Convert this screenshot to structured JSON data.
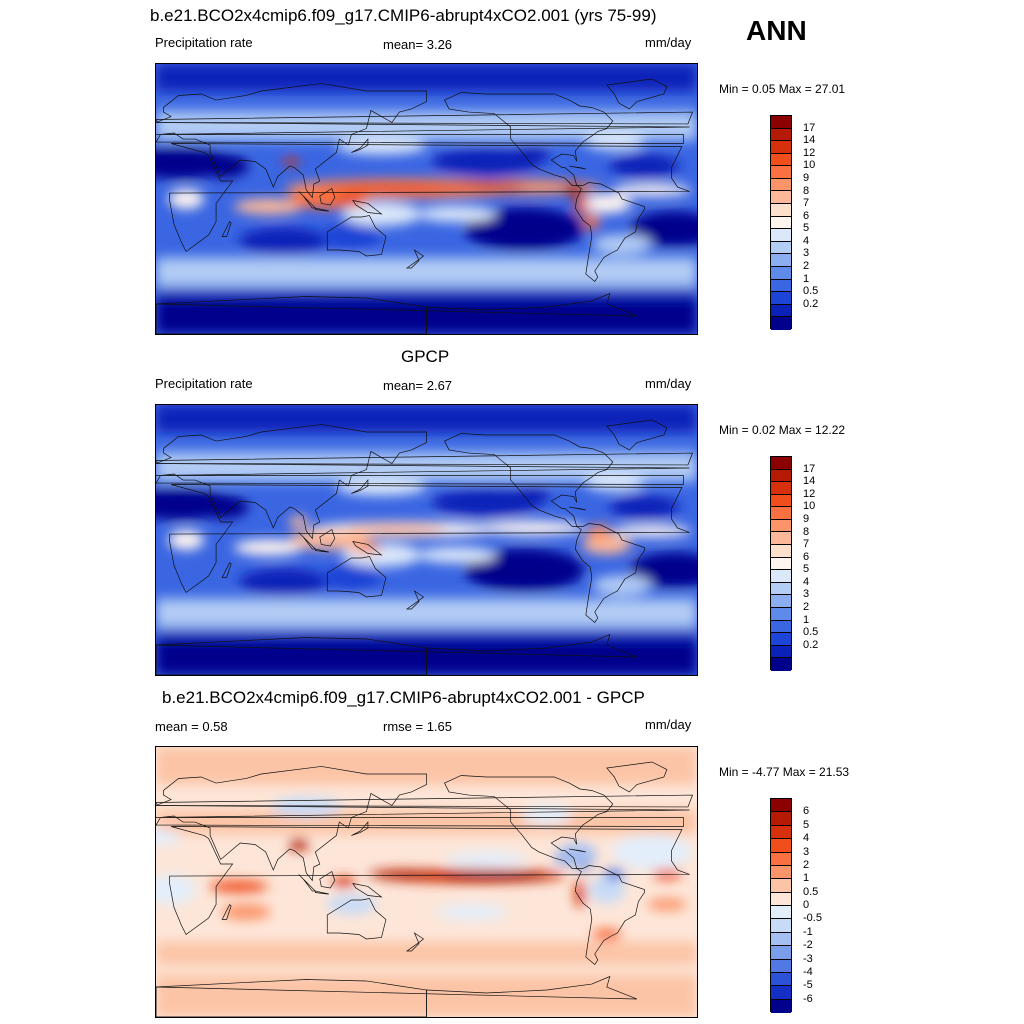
{
  "annotation": "ANN",
  "panels": [
    {
      "title": "b.e21.BCO2x4cmip6.f09_g17.CMIP6-abrupt4xCO2.001 (yrs 75-99)",
      "left_label": "Precipitation rate",
      "center_label": "mean=   3.26",
      "units": "mm/day",
      "minmax": "Min =   0.05 Max =  27.01",
      "field": "model"
    },
    {
      "title": "GPCP",
      "left_label": "Precipitation rate",
      "center_label": "mean=   2.67",
      "units": "mm/day",
      "minmax": "Min =   0.02 Max =  12.22",
      "field": "obs"
    },
    {
      "title": "b.e21.BCO2x4cmip6.f09_g17.CMIP6-abrupt4xCO2.001 - GPCP",
      "left_label": "mean =   0.58",
      "center_label": "rmse =   1.65",
      "units": "mm/day",
      "minmax": "Min =  -4.77 Max =  21.53",
      "field": "diff"
    }
  ],
  "colorbars": {
    "precip": {
      "labels": [
        "17",
        "14",
        "12",
        "10",
        "9",
        "8",
        "7",
        "6",
        "5",
        "4",
        "3",
        "2",
        "1",
        "0.5",
        "0.2"
      ],
      "colors": [
        "#8b0000",
        "#b51a04",
        "#d7300c",
        "#f04e1a",
        "#fa7040",
        "#fb9468",
        "#fcb898",
        "#fde0cc",
        "#fff5ef",
        "#dbe8f9",
        "#b4cdf4",
        "#8aaef0",
        "#5e8bea",
        "#3a66e2",
        "#1c44d6",
        "#0a22b8",
        "#00008b"
      ]
    },
    "diff": {
      "labels": [
        "6",
        "5",
        "4",
        "3",
        "2",
        "1",
        "0.5",
        "0",
        "-0.5",
        "-1",
        "-2",
        "-3",
        "-4",
        "-5",
        "-6"
      ],
      "colors": [
        "#8b0000",
        "#b51a04",
        "#d7300c",
        "#f04e1a",
        "#fa7040",
        "#fb9468",
        "#fcc4a6",
        "#fde6d8",
        "#e3eefb",
        "#c7dbf7",
        "#a4c0f2",
        "#7b9eec",
        "#5079e4",
        "#2c52d8",
        "#1430c4",
        "#00008b"
      ]
    }
  }
}
